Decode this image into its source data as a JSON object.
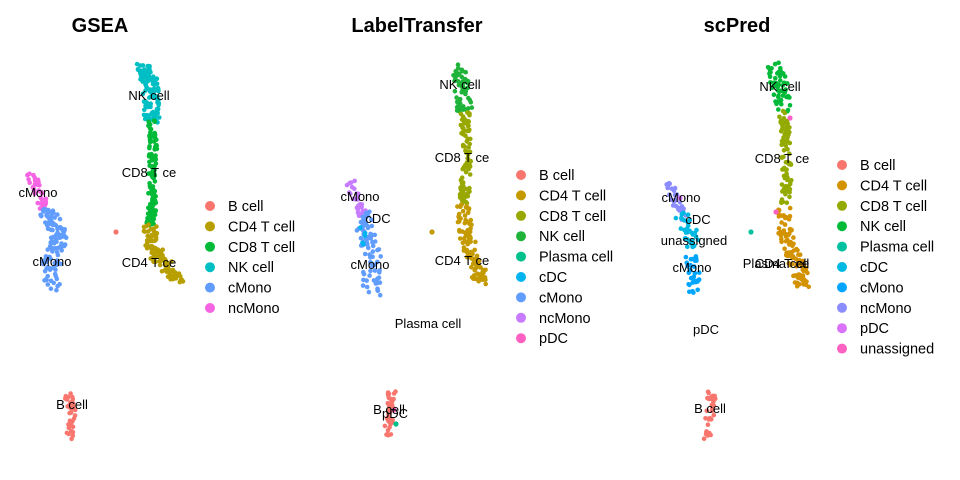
{
  "panels": [
    {
      "title": "GSEA",
      "legend": [
        {
          "label": "B cell",
          "color": "#F8766D"
        },
        {
          "label": "CD4 T cell",
          "color": "#B79F00"
        },
        {
          "label": "CD8 T cell",
          "color": "#00BA38"
        },
        {
          "label": "NK cell",
          "color": "#00BFC4"
        },
        {
          "label": "cMono",
          "color": "#619CFF"
        },
        {
          "label": "ncMono",
          "color": "#F564E3"
        }
      ],
      "cluster_labels": [
        "NK cell",
        "CD8 T ce",
        "cMono",
        "cMono",
        "CD4 T ce",
        "B cell"
      ]
    },
    {
      "title": "LabelTransfer",
      "legend": [
        {
          "label": "B cell",
          "color": "#F8766D"
        },
        {
          "label": "CD4 T cell",
          "color": "#C49A00"
        },
        {
          "label": "CD8 T cell",
          "color": "#99A800"
        },
        {
          "label": "NK cell",
          "color": "#1FB33A"
        },
        {
          "label": "Plasma cell",
          "color": "#00C08B"
        },
        {
          "label": "cDC",
          "color": "#00B4EF"
        },
        {
          "label": "cMono",
          "color": "#619CFF"
        },
        {
          "label": "ncMono",
          "color": "#C77CFF"
        },
        {
          "label": "pDC",
          "color": "#FF61C3"
        }
      ],
      "cluster_labels": [
        "NK cell",
        "CD8 T ce",
        "cMono",
        "cDC",
        "cMono",
        "CD4 T ce",
        "Plasma cell",
        "B cell",
        "pDC"
      ]
    },
    {
      "title": "scPred",
      "legend": [
        {
          "label": "B cell",
          "color": "#F8766D"
        },
        {
          "label": "CD4 T cell",
          "color": "#D39200"
        },
        {
          "label": "CD8 T cell",
          "color": "#93AA00"
        },
        {
          "label": "NK cell",
          "color": "#00BA38"
        },
        {
          "label": "Plasma cell",
          "color": "#00C19F"
        },
        {
          "label": "cDC",
          "color": "#00B9E3"
        },
        {
          "label": "cMono",
          "color": "#00A5FF"
        },
        {
          "label": "ncMono",
          "color": "#8B8CFF"
        },
        {
          "label": "pDC",
          "color": "#DB72FB"
        },
        {
          "label": "unassigned",
          "color": "#FF61C3"
        }
      ],
      "cluster_labels": [
        "NK cell",
        "CD8 T ce",
        "cMono",
        "cDC",
        "unassigned",
        "cMono",
        "Plasma cell",
        "CD4 T ce",
        "pDC",
        "B cell"
      ]
    }
  ],
  "chart_data": [
    {
      "type": "scatter",
      "title": "GSEA",
      "series": [
        {
          "name": "B cell"
        },
        {
          "name": "CD4 T cell"
        },
        {
          "name": "CD8 T cell"
        },
        {
          "name": "NK cell"
        },
        {
          "name": "cMono"
        },
        {
          "name": "ncMono"
        }
      ],
      "xlabel": "",
      "ylabel": "",
      "grid": false,
      "legend_position": "right"
    },
    {
      "type": "scatter",
      "title": "LabelTransfer",
      "series": [
        {
          "name": "B cell"
        },
        {
          "name": "CD4 T cell"
        },
        {
          "name": "CD8 T cell"
        },
        {
          "name": "NK cell"
        },
        {
          "name": "Plasma cell"
        },
        {
          "name": "cDC"
        },
        {
          "name": "cMono"
        },
        {
          "name": "ncMono"
        },
        {
          "name": "pDC"
        }
      ],
      "xlabel": "",
      "ylabel": "",
      "grid": false,
      "legend_position": "right"
    },
    {
      "type": "scatter",
      "title": "scPred",
      "series": [
        {
          "name": "B cell"
        },
        {
          "name": "CD4 T cell"
        },
        {
          "name": "CD8 T cell"
        },
        {
          "name": "NK cell"
        },
        {
          "name": "Plasma cell"
        },
        {
          "name": "cDC"
        },
        {
          "name": "cMono"
        },
        {
          "name": "ncMono"
        },
        {
          "name": "pDC"
        },
        {
          "name": "unassigned"
        }
      ],
      "xlabel": "",
      "ylabel": "",
      "grid": false,
      "legend_position": "right"
    }
  ]
}
